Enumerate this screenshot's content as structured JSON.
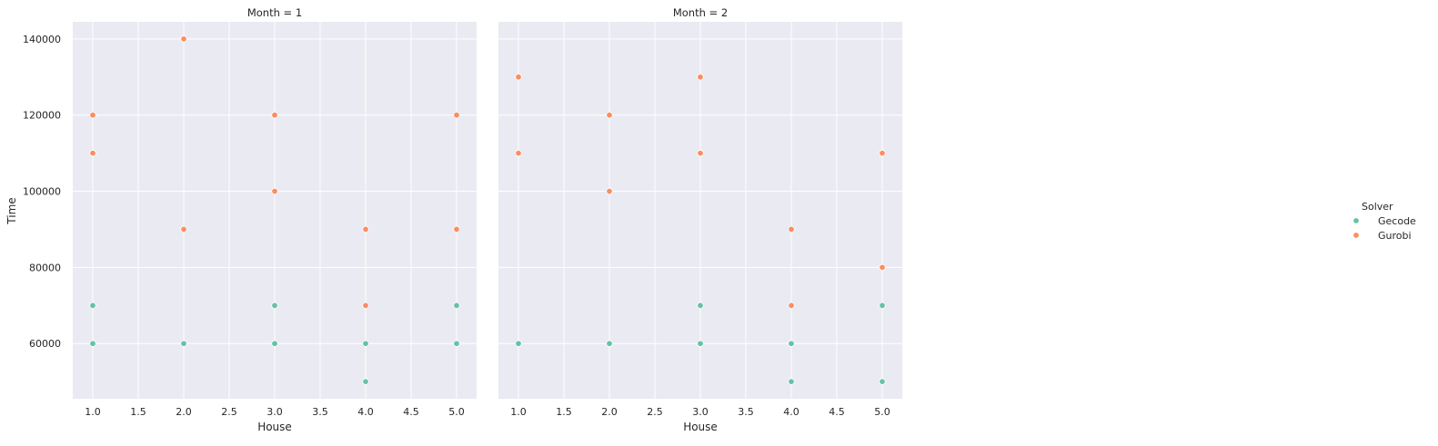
{
  "chart_data": {
    "type": "scatter",
    "ylabel": "Time",
    "xlabel": "House",
    "xlim": [
      0.78,
      5.22
    ],
    "ylim": [
      45500,
      144500
    ],
    "xticks": [
      "1.0",
      "1.5",
      "2.0",
      "2.5",
      "3.0",
      "3.5",
      "4.0",
      "4.5",
      "5.0"
    ],
    "yticks": [
      "60000",
      "80000",
      "100000",
      "120000",
      "140000"
    ],
    "grid": true,
    "legend": {
      "title": "Solver",
      "placement": "right",
      "entries": [
        {
          "name": "Gecode",
          "color": "#66c2a5"
        },
        {
          "name": "Gurobi",
          "color": "#fc8d62"
        }
      ]
    },
    "facets": [
      {
        "title": "Month = 1",
        "series": [
          {
            "name": "Gecode",
            "points": [
              {
                "x": 1,
                "y": 60000
              },
              {
                "x": 1,
                "y": 70000
              },
              {
                "x": 2,
                "y": 60000
              },
              {
                "x": 3,
                "y": 60000
              },
              {
                "x": 3,
                "y": 70000
              },
              {
                "x": 4,
                "y": 50000
              },
              {
                "x": 4,
                "y": 60000
              },
              {
                "x": 5,
                "y": 60000
              },
              {
                "x": 5,
                "y": 70000
              }
            ]
          },
          {
            "name": "Gurobi",
            "points": [
              {
                "x": 1,
                "y": 110000
              },
              {
                "x": 1,
                "y": 120000
              },
              {
                "x": 2,
                "y": 90000
              },
              {
                "x": 2,
                "y": 140000
              },
              {
                "x": 3,
                "y": 100000
              },
              {
                "x": 3,
                "y": 120000
              },
              {
                "x": 4,
                "y": 70000
              },
              {
                "x": 4,
                "y": 90000
              },
              {
                "x": 5,
                "y": 90000
              },
              {
                "x": 5,
                "y": 120000
              }
            ]
          }
        ]
      },
      {
        "title": "Month = 2",
        "series": [
          {
            "name": "Gecode",
            "points": [
              {
                "x": 1,
                "y": 60000
              },
              {
                "x": 2,
                "y": 60000
              },
              {
                "x": 3,
                "y": 60000
              },
              {
                "x": 3,
                "y": 70000
              },
              {
                "x": 4,
                "y": 50000
              },
              {
                "x": 4,
                "y": 60000
              },
              {
                "x": 5,
                "y": 50000
              },
              {
                "x": 5,
                "y": 70000
              }
            ]
          },
          {
            "name": "Gurobi",
            "points": [
              {
                "x": 1,
                "y": 110000
              },
              {
                "x": 1,
                "y": 130000
              },
              {
                "x": 2,
                "y": 100000
              },
              {
                "x": 2,
                "y": 120000
              },
              {
                "x": 3,
                "y": 110000
              },
              {
                "x": 3,
                "y": 130000
              },
              {
                "x": 4,
                "y": 70000
              },
              {
                "x": 4,
                "y": 90000
              },
              {
                "x": 5,
                "y": 80000
              },
              {
                "x": 5,
                "y": 110000
              }
            ]
          }
        ]
      }
    ],
    "colors": {
      "panel_background": "#eaeaf2",
      "grid": "#ffffff"
    }
  }
}
